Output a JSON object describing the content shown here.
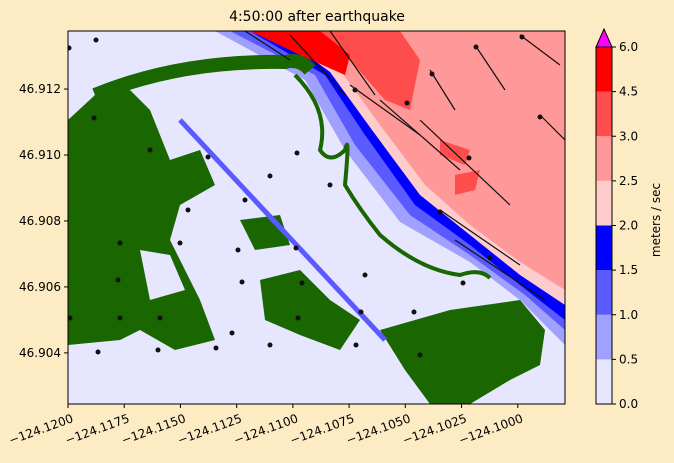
{
  "chart_data": {
    "type": "contour",
    "title": "4:50:00 after earthquake",
    "xlim": [
      -124.12,
      -124.0979
    ],
    "ylim": [
      46.90245,
      46.91376
    ],
    "xticks": [
      {
        "value": -124.12,
        "label": "−124.1200"
      },
      {
        "value": -124.1175,
        "label": "−124.1175"
      },
      {
        "value": -124.115,
        "label": "−124.1150"
      },
      {
        "value": -124.1125,
        "label": "−124.1125"
      },
      {
        "value": -124.11,
        "label": "−124.1100"
      },
      {
        "value": -124.1075,
        "label": "−124.1075"
      },
      {
        "value": -124.105,
        "label": "−124.1050"
      },
      {
        "value": -124.1025,
        "label": "−124.1025"
      },
      {
        "value": -124.1,
        "label": "−124.1000"
      }
    ],
    "yticks": [
      46.904,
      46.906,
      46.908,
      {
        "value": 46.91,
        "label": "46.910"
      },
      46.912
    ],
    "colorbar": {
      "label": "meters / sec",
      "levels": [
        {
          "value": 0,
          "label": "0.0"
        },
        {
          "value": 0.5,
          "label": "0.5"
        },
        {
          "value": 1,
          "label": "1.0"
        },
        {
          "value": 1.5,
          "label": "1.5"
        },
        {
          "value": 2,
          "label": "2.0"
        },
        {
          "value": 2.5,
          "label": "2.5"
        },
        {
          "value": 3,
          "label": "3.0"
        },
        {
          "value": 4.5,
          "label": "4.5"
        },
        {
          "value": 6,
          "label": "6.0"
        }
      ],
      "colors": [
        "#e6e6ff",
        "#a0a0ff",
        "#5a5aff",
        "#0000ff",
        "#ffcccc",
        "#ff9999",
        "#ff4d4d",
        "#ff0000"
      ],
      "extend_color": "#ff00ff"
    }
  }
}
